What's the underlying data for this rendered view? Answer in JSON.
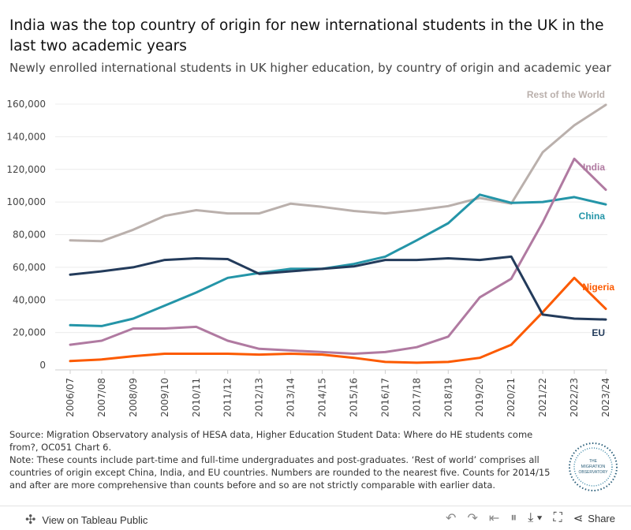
{
  "title": "India was the top country of origin for new international students in the UK in the last two academic years",
  "subtitle": "Newly enrolled international students in UK higher education, by country of origin and academic year",
  "chart_data": {
    "type": "line",
    "categories": [
      "2006/07",
      "2007/08",
      "2008/09",
      "2009/10",
      "2010/11",
      "2011/12",
      "2012/13",
      "2013/14",
      "2014/15",
      "2015/16",
      "2016/17",
      "2017/18",
      "2018/19",
      "2019/20",
      "2020/21",
      "2021/22",
      "2022/23",
      "2023/24"
    ],
    "ylim": [
      0,
      160000
    ],
    "yticks": [
      0,
      20000,
      40000,
      60000,
      80000,
      100000,
      120000,
      140000,
      160000
    ],
    "ytick_labels": [
      "0",
      "20,000",
      "40,000",
      "60,000",
      "80,000",
      "100,000",
      "120,000",
      "140,000",
      "160,000"
    ],
    "xlabel": "",
    "ylabel": "",
    "series": [
      {
        "name": "Rest of the World",
        "color": "#bab0ac",
        "values": [
          76500,
          76000,
          83000,
          91500,
          95000,
          93000,
          93000,
          99000,
          97000,
          94500,
          93000,
          95000,
          97500,
          102500,
          99000,
          130500,
          147000,
          159500
        ]
      },
      {
        "name": "India",
        "color": "#b07aa1",
        "values": [
          12500,
          15000,
          22500,
          22500,
          23500,
          15000,
          10000,
          9000,
          8000,
          7000,
          8000,
          11000,
          17500,
          41500,
          53000,
          87500,
          126500,
          107500
        ]
      },
      {
        "name": "China",
        "color": "#2495a8",
        "values": [
          24500,
          24000,
          28500,
          36500,
          44500,
          53500,
          56500,
          59000,
          59000,
          62000,
          66500,
          76500,
          87000,
          104500,
          99500,
          100000,
          103000,
          98500
        ]
      },
      {
        "name": "Nigeria",
        "color": "#fc5a00",
        "values": [
          2500,
          3500,
          5500,
          7000,
          7000,
          7000,
          6500,
          7000,
          6500,
          4500,
          2000,
          1500,
          2000,
          4500,
          12500,
          32500,
          53500,
          34500
        ]
      },
      {
        "name": "EU",
        "color": "#233b5b",
        "values": [
          55500,
          57500,
          60000,
          64500,
          65500,
          65000,
          56000,
          57500,
          59000,
          60500,
          64500,
          64500,
          65500,
          64500,
          66500,
          31000,
          28500,
          28000
        ]
      }
    ]
  },
  "notes": {
    "source": "Source: Migration Observatory analysis of HESA data, Higher Education Student Data: Where do HE students come from?, OC051 Chart 6.",
    "note": "Note: These counts include part-time and full-time undergraduates and post-graduates. ‘Rest of world’ comprises all countries of origin except China, India, and EU countries. Numbers are rounded to the nearest five. Counts for 2014/15 and after are more comprehensive than counts before and so are not strictly comparable with earlier data."
  },
  "logo": {
    "line1": "THE",
    "line2": "MIGRATION",
    "line3": "OBSERVATORY"
  },
  "footer": {
    "view_label": "View on Tableau Public",
    "share_label": "Share"
  }
}
